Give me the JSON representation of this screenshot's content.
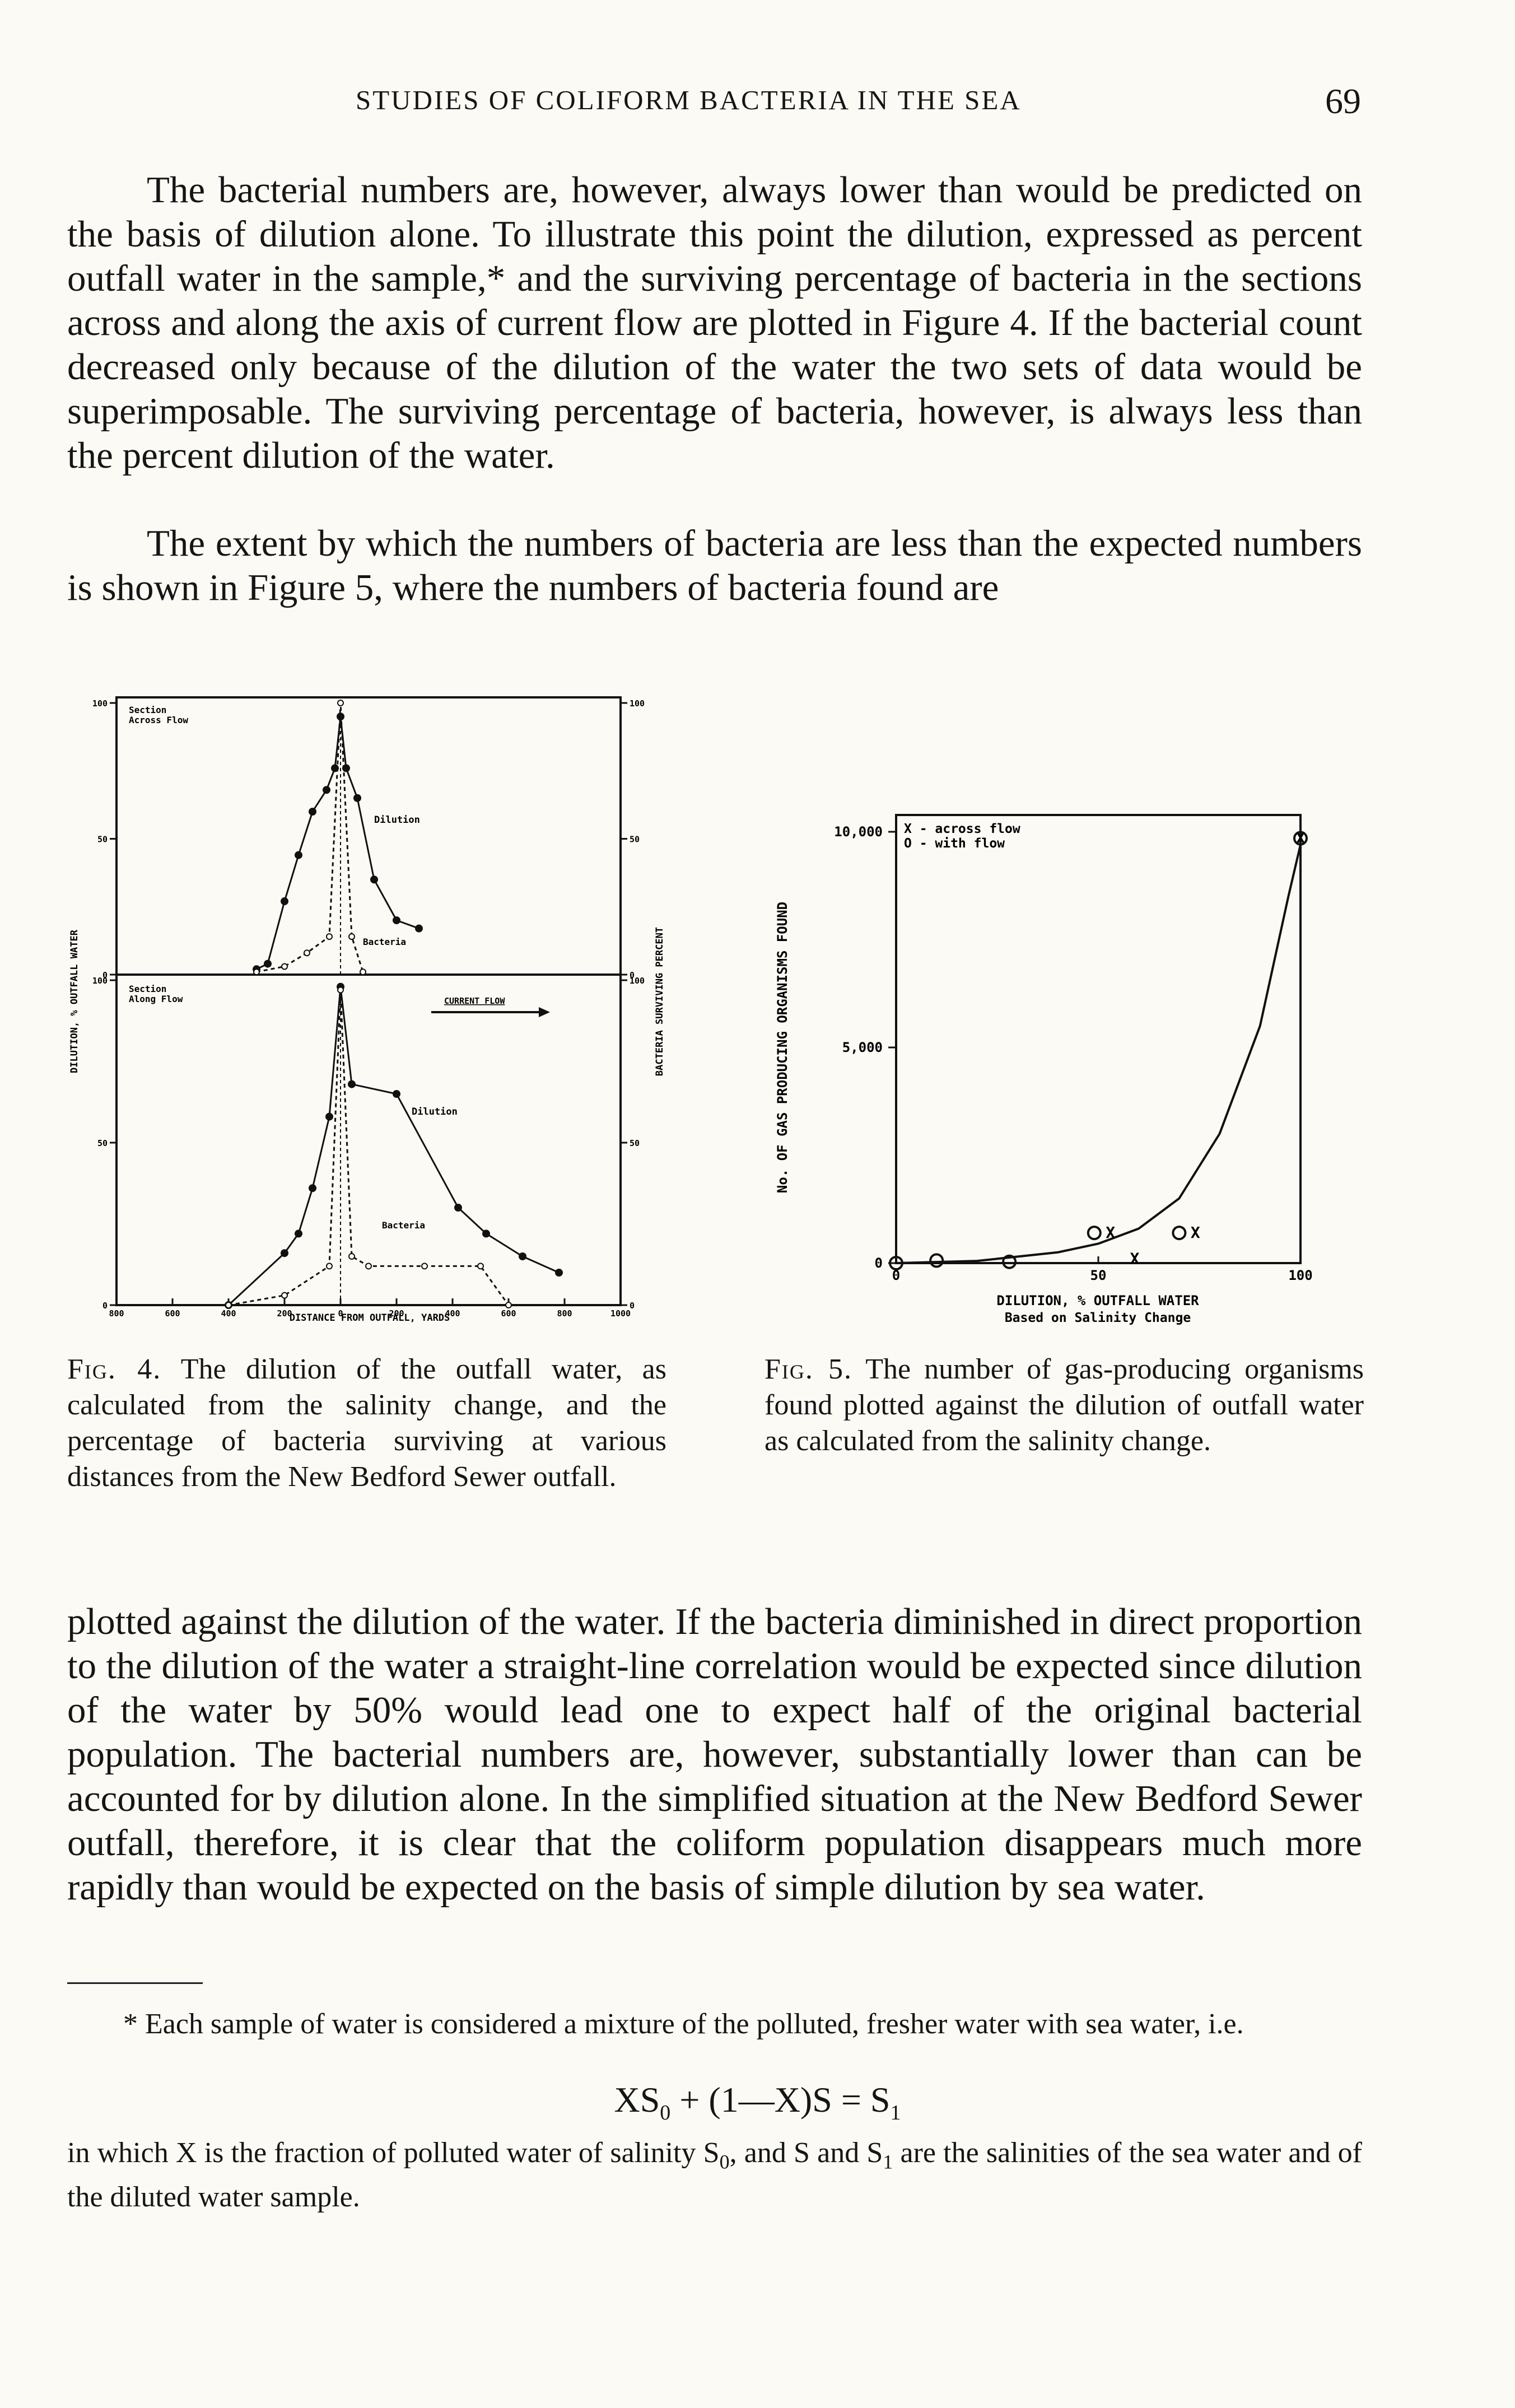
{
  "header": {
    "running_title": "STUDIES OF COLIFORM BACTERIA IN THE SEA",
    "page_number": "69"
  },
  "body": {
    "p1": "The bacterial numbers are, however, always lower than would be predicted on the basis of dilution alone. To illustrate this point the dilution, expressed as percent outfall water in the sample,* and the surviving percentage of bacteria in the sections across and along the axis of current flow are plotted in Figure 4. If the bacterial count decreased only because of the dilution of the water the two sets of data would be superimposable. The surviving percentage of bacteria, however, is always less than the percent dilution of the water.",
    "p2": "The extent by which the numbers of bacteria are less than the expected numbers is shown in Figure 5, where the numbers of bacteria found are",
    "p3": "plotted against the dilution of the water. If the bacteria diminished in direct proportion to the dilution of the water a straight-line correlation would be expected since dilution of the water by 50% would lead one to expect half of the original bacterial population. The bacterial numbers are, however, substantially lower than can be accounted for by dilution alone. In the simplified situation at the New Bedford Sewer outfall, therefore, it is clear that the coliform population disappears much more rapidly than would be expected on the basis of simple dilution by sea water."
  },
  "fig4": {
    "caption_label": "Fig. 4.",
    "caption_text": "The dilution of the outfall water, as calculated from the salinity change, and the percentage of bacteria surviving at various distances from the New Bedford Sewer outfall.",
    "left_axis_label": "DILUTION, % OUTFALL WATER",
    "right_axis_label": "BACTERIA SURVIVING PERCENT",
    "x_axis_label": "DISTANCE FROM OUTFALL, YARDS",
    "x_ticks": [
      "800",
      "600",
      "400",
      "200",
      "0",
      "200",
      "400",
      "600",
      "800",
      "1000"
    ],
    "left_ticks_top": [
      "100",
      "50",
      "0"
    ],
    "left_ticks_bottom": [
      "100",
      "50",
      "0"
    ],
    "right_ticks_top": [
      "100",
      "50",
      "0"
    ],
    "right_ticks_bottom": [
      "100",
      "50",
      "0"
    ],
    "top_panel": {
      "title_line1": "Section",
      "title_line2": "Across Flow",
      "dilution_label": "Dilution",
      "bacteria_label": "Bacteria"
    },
    "bottom_panel": {
      "title_line1": "Section",
      "title_line2": "Along Flow",
      "dilution_label": "Dilution",
      "bacteria_label": "Bacteria",
      "current_label": "CURRENT FLOW"
    }
  },
  "fig5": {
    "caption_label": "Fig. 5.",
    "caption_text": "The number of gas-producing organisms found plotted against the dilution of outfall water as calculated from the salinity change.",
    "y_axis_label": "No. OF GAS PRODUCING ORGANISMS FOUND",
    "x_axis_label": "DILUTION, % OUTFALL WATER",
    "x_axis_sublabel": "Based on Salinity Change",
    "legend_line1": "X - across flow",
    "legend_line2": "O - with flow",
    "y_ticks": [
      "10,000",
      "5,000",
      "0"
    ],
    "x_ticks": [
      "0",
      "50",
      "100"
    ],
    "marker_x": "X",
    "marker_o": "O"
  },
  "footnote": {
    "text1": "* Each sample of water is considered a mixture of the polluted, fresher water with sea water, i.e.",
    "eq_part1": "XS",
    "eq_sub1": "0",
    "eq_part2": " + (1—X)S = S",
    "eq_sub2": "1",
    "text2a": "in which X is the fraction of polluted water of salinity S",
    "text2_sub": "0",
    "text2b": ", and S and S",
    "text2_sub2": "1",
    "text2c": " are the salinities of the sea water and of the diluted water sample."
  },
  "chart_data": [
    {
      "type": "line",
      "panel": "Section Across Flow",
      "xlabel": "DISTANCE FROM OUTFALL, YARDS",
      "ylabel": "DILUTION, % OUTFALL WATER",
      "ylabel_right": "BACTERIA SURVIVING PERCENT",
      "xlim": [
        -800,
        1000
      ],
      "ylim": [
        0,
        100
      ],
      "series": [
        {
          "name": "Dilution",
          "x": [
            -300,
            -260,
            -200,
            -150,
            -100,
            -50,
            -20,
            0,
            20,
            60,
            120,
            200,
            280
          ],
          "y": [
            2,
            4,
            27,
            44,
            60,
            68,
            76,
            95,
            76,
            65,
            35,
            20,
            17
          ]
        },
        {
          "name": "Bacteria",
          "x": [
            -300,
            -200,
            -120,
            -40,
            0,
            40,
            80
          ],
          "y": [
            1,
            3,
            8,
            14,
            100,
            14,
            1
          ]
        }
      ]
    },
    {
      "type": "line",
      "panel": "Section Along Flow",
      "xlabel": "DISTANCE FROM OUTFALL, YARDS",
      "ylabel": "DILUTION, % OUTFALL WATER",
      "ylabel_right": "BACTERIA SURVIVING PERCENT",
      "xlim": [
        -800,
        1000
      ],
      "ylim": [
        0,
        100
      ],
      "series": [
        {
          "name": "Dilution",
          "x": [
            -400,
            -200,
            -150,
            -100,
            -40,
            0,
            40,
            200,
            420,
            520,
            650,
            780
          ],
          "y": [
            0,
            16,
            22,
            36,
            58,
            98,
            68,
            65,
            30,
            22,
            15,
            10
          ]
        },
        {
          "name": "Bacteria",
          "x": [
            -400,
            -200,
            -40,
            0,
            40,
            100,
            300,
            500,
            600
          ],
          "y": [
            0,
            3,
            12,
            97,
            15,
            12,
            12,
            12,
            0
          ]
        }
      ]
    },
    {
      "type": "scatter",
      "title": "",
      "xlabel": "DILUTION, % OUTFALL WATER",
      "ylabel": "No. OF GAS PRODUCING ORGANISMS FOUND",
      "xlim": [
        0,
        100
      ],
      "ylim": [
        0,
        10000
      ],
      "series": [
        {
          "name": "X - across flow",
          "x": [
            53,
            59,
            74,
            100
          ],
          "y": [
            700,
            100,
            700,
            9850
          ]
        },
        {
          "name": "O - with flow",
          "x": [
            0,
            10,
            28,
            49,
            70,
            100
          ],
          "y": [
            0,
            60,
            30,
            700,
            700,
            9850
          ]
        },
        {
          "name": "fitted curve",
          "x": [
            0,
            20,
            40,
            50,
            60,
            70,
            80,
            90,
            97,
            100
          ],
          "y": [
            0,
            50,
            250,
            450,
            800,
            1500,
            3000,
            5500,
            8500,
            9700
          ]
        }
      ]
    }
  ]
}
